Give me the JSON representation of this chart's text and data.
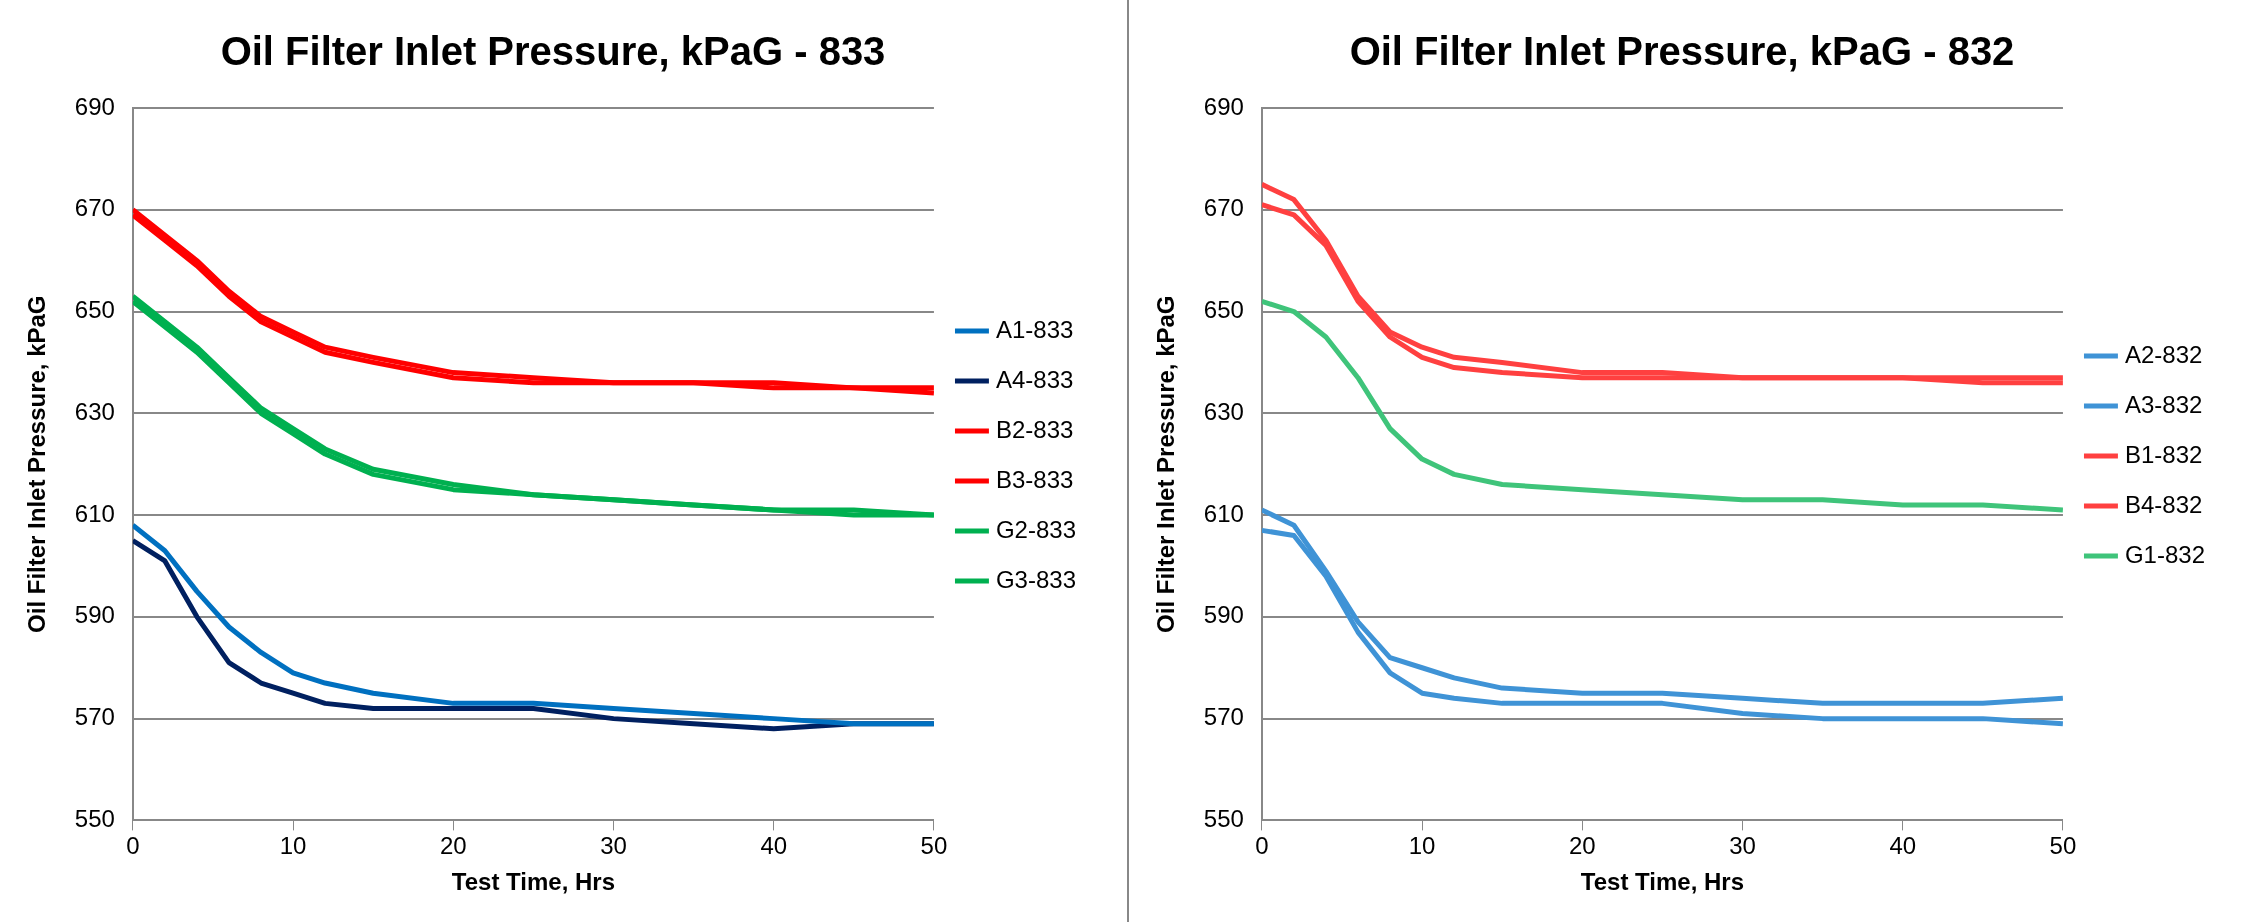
{
  "chart_data": [
    {
      "type": "line",
      "title": "Oil Filter Inlet Pressure, kPaG - 833",
      "xlabel": "Test Time, Hrs",
      "ylabel": "Oil Filter Inlet Pressure, kPaG",
      "x": [
        0,
        2,
        4,
        6,
        8,
        10,
        12,
        15,
        20,
        25,
        30,
        35,
        40,
        45,
        50
      ],
      "xlim": [
        0,
        50
      ],
      "xticks": [
        0,
        10,
        20,
        30,
        40,
        50
      ],
      "ylim": [
        550,
        690
      ],
      "yticks": [
        550,
        570,
        590,
        610,
        630,
        650,
        670,
        690
      ],
      "grid": "y",
      "legend": "right",
      "marker": "none",
      "line_style": "solid",
      "series": [
        {
          "name": "A1-833",
          "color": "#0070c0",
          "values": [
            608,
            603,
            595,
            588,
            583,
            579,
            577,
            575,
            573,
            573,
            572,
            571,
            570,
            569,
            569
          ]
        },
        {
          "name": "A4-833",
          "color": "#002060",
          "values": [
            605,
            601,
            590,
            581,
            577,
            575,
            573,
            572,
            572,
            572,
            570,
            569,
            568,
            569,
            569
          ]
        },
        {
          "name": "B2-833",
          "color": "#ff0000",
          "values": [
            670,
            665,
            660,
            654,
            649,
            646,
            643,
            641,
            638,
            637,
            636,
            636,
            636,
            635,
            635
          ]
        },
        {
          "name": "B3-833",
          "color": "#ff0000",
          "values": [
            669,
            664,
            659,
            653,
            648,
            645,
            642,
            640,
            637,
            636,
            636,
            636,
            635,
            635,
            634
          ]
        },
        {
          "name": "G2-833",
          "color": "#00b050",
          "values": [
            653,
            648,
            643,
            637,
            631,
            627,
            623,
            619,
            616,
            614,
            613,
            612,
            611,
            611,
            610
          ]
        },
        {
          "name": "G3-833",
          "color": "#00b050",
          "values": [
            652,
            647,
            642,
            636,
            630,
            626,
            622,
            618,
            615,
            614,
            613,
            612,
            611,
            610,
            610
          ]
        }
      ]
    },
    {
      "type": "line",
      "title": "Oil Filter Inlet Pressure, kPaG - 832",
      "xlabel": "Test Time, Hrs",
      "ylabel": "Oil Filter Inlet Pressure, kPaG",
      "x": [
        0,
        2,
        4,
        6,
        8,
        10,
        12,
        15,
        20,
        25,
        30,
        35,
        40,
        45,
        50
      ],
      "xlim": [
        0,
        50
      ],
      "xticks": [
        0,
        10,
        20,
        30,
        40,
        50
      ],
      "ylim": [
        550,
        690
      ],
      "yticks": [
        550,
        570,
        590,
        610,
        630,
        650,
        670,
        690
      ],
      "grid": "y",
      "legend": "right",
      "marker": "none",
      "line_style": "solid",
      "series": [
        {
          "name": "A2-832",
          "color": "#3f93d6",
          "values": [
            611,
            608,
            599,
            589,
            582,
            580,
            578,
            576,
            575,
            575,
            574,
            573,
            573,
            573,
            574
          ]
        },
        {
          "name": "A3-832",
          "color": "#3f93d6",
          "values": [
            607,
            606,
            598,
            587,
            579,
            575,
            574,
            573,
            573,
            573,
            571,
            570,
            570,
            570,
            569
          ]
        },
        {
          "name": "B1-832",
          "color": "#ff4040",
          "values": [
            675,
            672,
            664,
            653,
            646,
            643,
            641,
            640,
            638,
            638,
            637,
            637,
            637,
            637,
            637
          ]
        },
        {
          "name": "B4-832",
          "color": "#ff4040",
          "values": [
            671,
            669,
            663,
            652,
            645,
            641,
            639,
            638,
            637,
            637,
            637,
            637,
            637,
            636,
            636
          ]
        },
        {
          "name": "G1-832",
          "color": "#3fc47a",
          "values": [
            652,
            650,
            645,
            637,
            627,
            621,
            618,
            616,
            615,
            614,
            613,
            613,
            612,
            612,
            611
          ]
        }
      ]
    }
  ]
}
